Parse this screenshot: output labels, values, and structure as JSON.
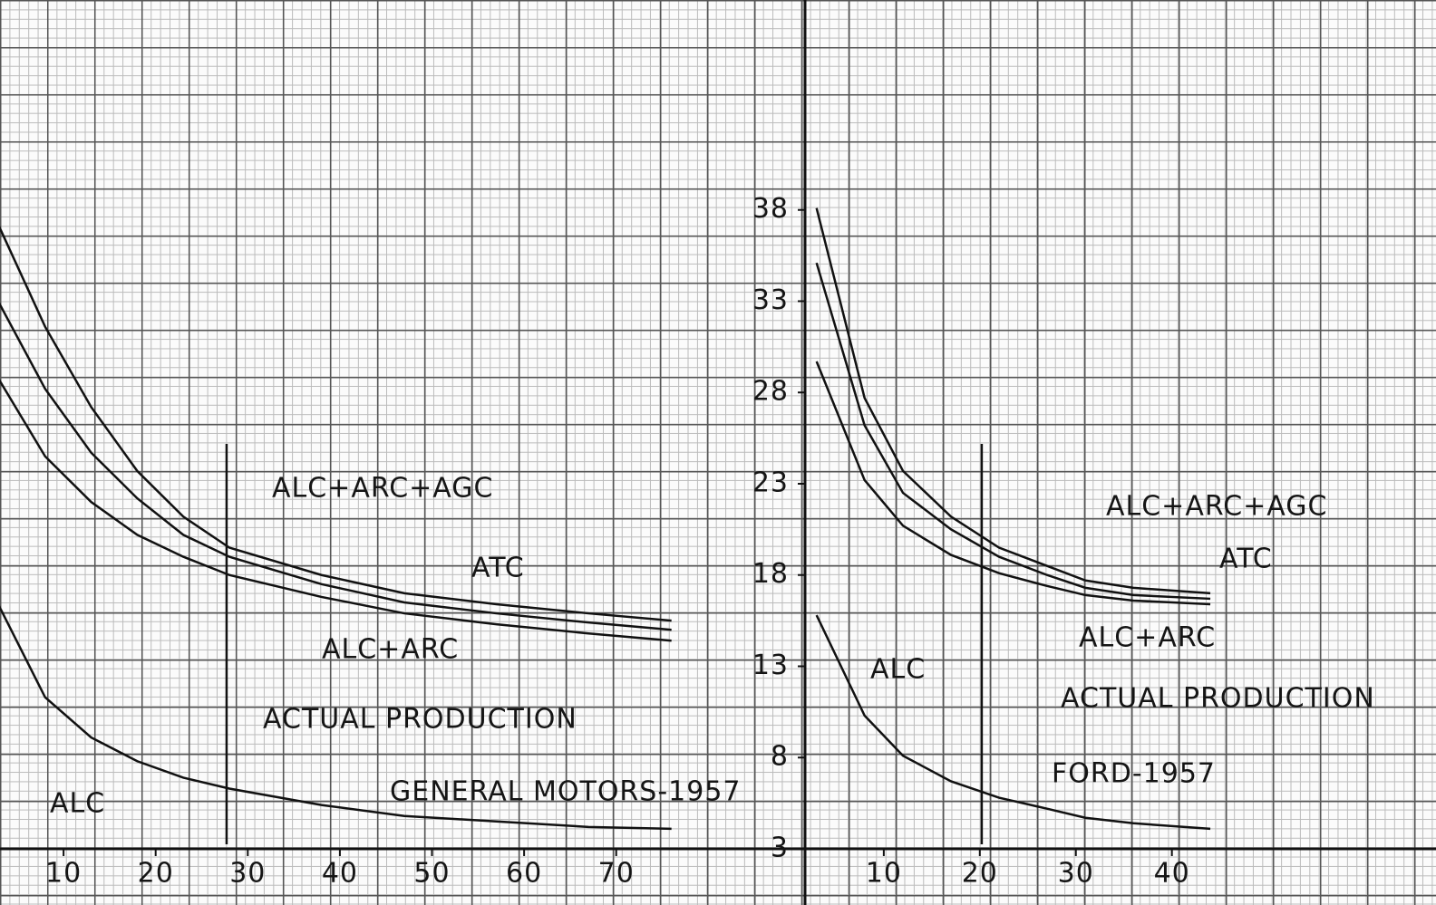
{
  "chart_data": [
    {
      "type": "line",
      "title": "GENERAL MOTORS-1957",
      "x": [
        3,
        8,
        13,
        18,
        23,
        28,
        38,
        47,
        57,
        67,
        76
      ],
      "series": [
        {
          "name": "ATC",
          "color": "#111111",
          "values": [
            37.1,
            31.6,
            27.2,
            23.7,
            21.2,
            19.5,
            18.0,
            17.0,
            16.4,
            15.9,
            15.5
          ]
        },
        {
          "name": "ALC+ARC+AGC",
          "color": "#111111",
          "values": [
            32.9,
            28.2,
            24.7,
            22.2,
            20.2,
            19.0,
            17.5,
            16.5,
            15.9,
            15.4,
            15.0
          ]
        },
        {
          "name": "ALC+ARC",
          "color": "#111111",
          "values": [
            28.7,
            24.5,
            22.0,
            20.2,
            19.0,
            18.0,
            16.8,
            15.9,
            15.3,
            14.8,
            14.4
          ]
        },
        {
          "name": "ALC",
          "color": "#111111",
          "values": [
            16.3,
            11.3,
            9.1,
            7.8,
            6.9,
            6.3,
            5.4,
            4.8,
            4.5,
            4.2,
            4.1
          ]
        }
      ],
      "markers": [
        {
          "label": "ACTUAL PRODUCTION",
          "x": 27.7
        }
      ],
      "xlim": [
        3.1,
        90.5
      ],
      "xticks": [
        10,
        20,
        30,
        40,
        50,
        60,
        70
      ],
      "ylim": [
        3,
        49.5
      ],
      "yticks": [
        3,
        8,
        13,
        18,
        23,
        28,
        33,
        38
      ]
    },
    {
      "type": "line",
      "title": "FORD-1957",
      "x": [
        3,
        8,
        12,
        17,
        22,
        27,
        31,
        36,
        44
      ],
      "series": [
        {
          "name": "ALC+ARC+AGC",
          "color": "#111111",
          "values": [
            38.1,
            27.7,
            23.7,
            21.2,
            19.5,
            18.5,
            17.7,
            17.3,
            17.0
          ]
        },
        {
          "name": "ATC",
          "color": "#111111",
          "values": [
            35.1,
            26.2,
            22.5,
            20.5,
            19.0,
            18.0,
            17.3,
            16.9,
            16.7
          ]
        },
        {
          "name": "ALC+ARC",
          "color": "#111111",
          "values": [
            29.7,
            23.2,
            20.7,
            19.1,
            18.1,
            17.4,
            16.9,
            16.6,
            16.4
          ]
        },
        {
          "name": "ALC",
          "color": "#111111",
          "values": [
            15.8,
            10.3,
            8.1,
            6.7,
            5.8,
            5.2,
            4.7,
            4.4,
            4.1
          ]
        }
      ],
      "markers": [
        {
          "label": "ACTUAL PRODUCTION",
          "x": 20.2
        }
      ],
      "xlim": [
        1.8,
        67.5
      ],
      "xticks": [
        10,
        20,
        30,
        40
      ],
      "ylim": [
        3,
        49.5
      ]
    }
  ]
}
